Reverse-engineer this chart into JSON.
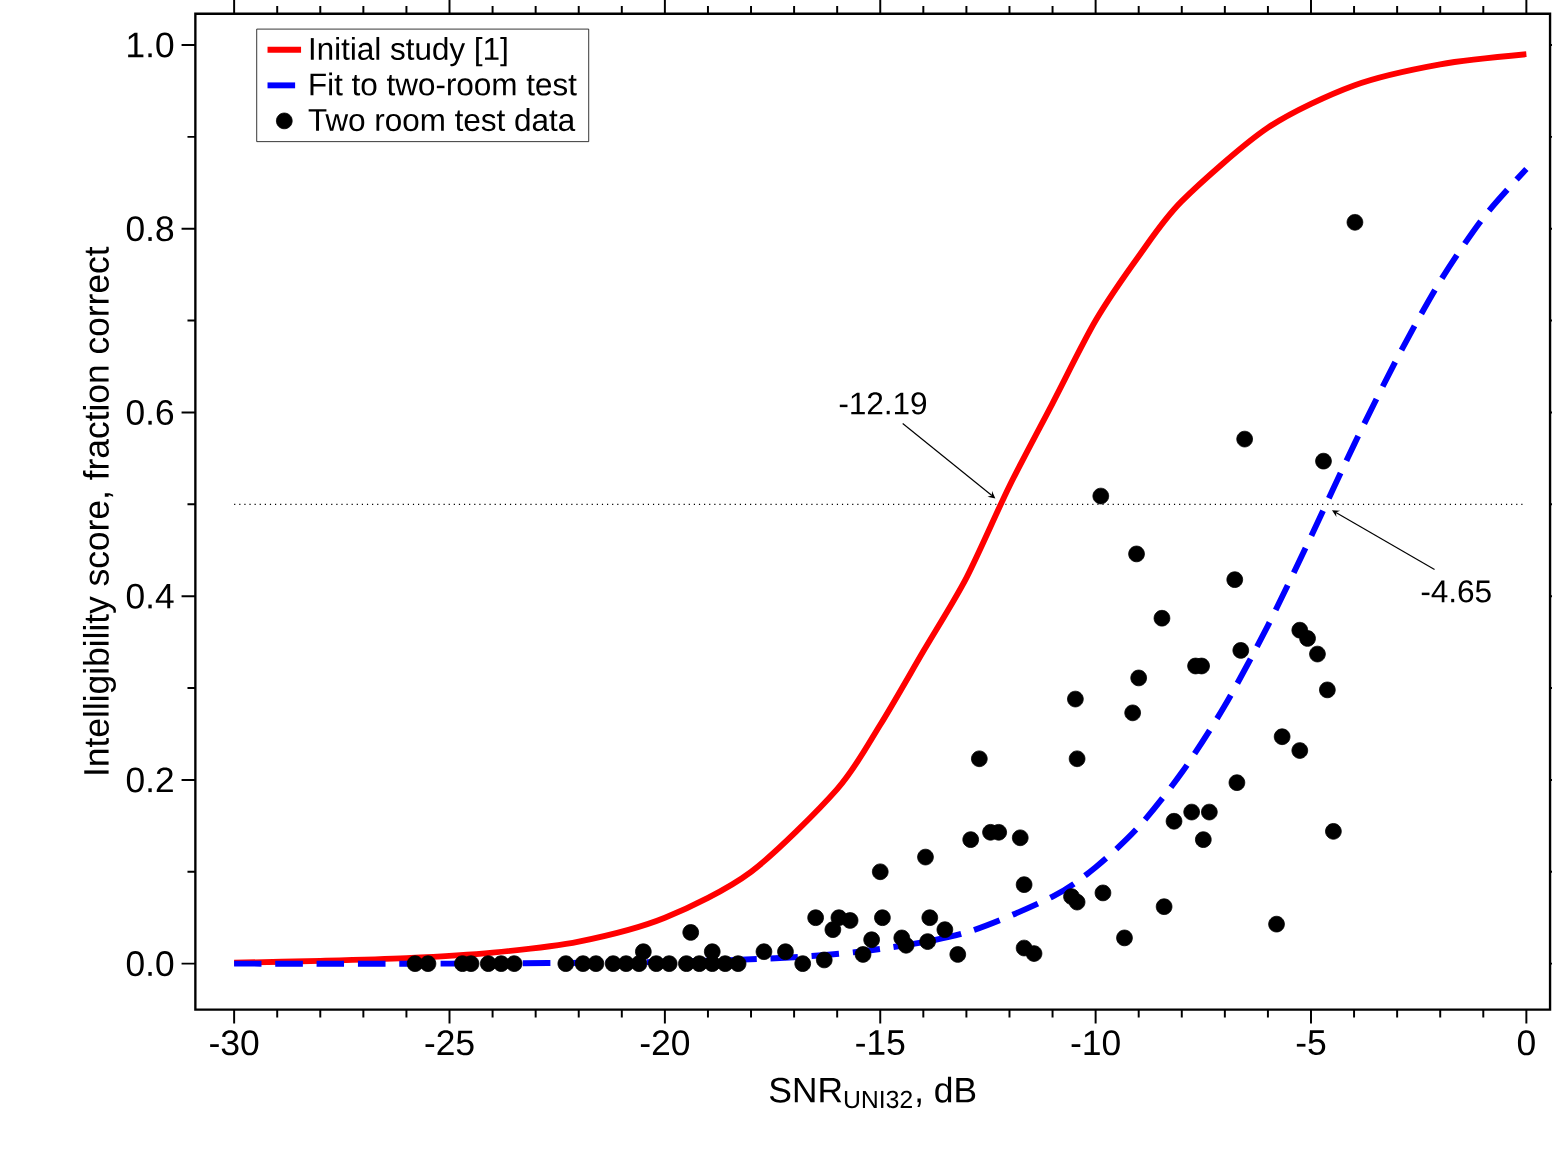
{
  "chart_data": {
    "type": "line",
    "xlabel": "SNR$_{UNI32}$, dB",
    "ylabel": "Intelligibility score, fraction correct",
    "xlim": [
      -30.9,
      0.55
    ],
    "ylim": [
      -0.05,
      1.034
    ],
    "xticks": [
      -30,
      -25,
      -20,
      -15,
      -10,
      -5,
      0
    ],
    "yticks": [
      {
        "value": 0,
        "label": "0.0"
      },
      {
        "value": 0.2,
        "label": "0.2"
      },
      {
        "value": 0.4,
        "label": "0.4"
      },
      {
        "value": 0.6,
        "label": "0.6"
      },
      {
        "value": 0.8,
        "label": "0.8"
      },
      {
        "value": 1,
        "label": "1.0"
      }
    ],
    "grid": false,
    "legend": "top left",
    "ref_lines": [
      {
        "axis": "y",
        "value": 0.5,
        "line_style": "dotted",
        "color": "#000000"
      }
    ],
    "annotations": [
      {
        "text": "-12.19",
        "x": -12.19,
        "y": 0.5
      },
      {
        "text": "-4.65",
        "x": -4.65,
        "y": 0.5
      }
    ],
    "series": [
      {
        "name": "Initial study [1]",
        "color": "#ff0000",
        "line_style": "solid",
        "marker": "none",
        "x": [
          -30,
          -28,
          -26,
          -24,
          -22,
          -20,
          -18,
          -16,
          -15,
          -14,
          -13,
          -12,
          -11,
          -10,
          -9,
          -8,
          -6,
          -4,
          -2,
          0
        ],
        "values": [
          0.001,
          0.003,
          0.006,
          0.012,
          0.024,
          0.05,
          0.1,
          0.19,
          0.26,
          0.34,
          0.42,
          0.52,
          0.61,
          0.7,
          0.77,
          0.83,
          0.91,
          0.956,
          0.979,
          0.99
        ]
      },
      {
        "name": "Fit to two-room test",
        "color": "#0000ff",
        "line_style": "dashed",
        "marker": "none",
        "x": [
          -30,
          -25,
          -20,
          -17,
          -15,
          -13,
          -11,
          -10,
          -9,
          -8,
          -7,
          -6,
          -5,
          -4,
          -3,
          -2,
          -1,
          0
        ],
        "values": [
          0.0,
          0.0,
          0.002,
          0.007,
          0.016,
          0.034,
          0.073,
          0.105,
          0.149,
          0.208,
          0.281,
          0.368,
          0.465,
          0.565,
          0.659,
          0.743,
          0.812,
          0.865
        ]
      },
      {
        "name": "Two room test data",
        "type": "scatter",
        "color": "#000000",
        "marker": "circle",
        "x": [
          -25.8,
          -25.5,
          -24.7,
          -24.5,
          -24.1,
          -23.8,
          -23.5,
          -22.3,
          -21.9,
          -21.6,
          -21.2,
          -20.9,
          -20.6,
          -20.2,
          -19.9,
          -19.5,
          -19.2,
          -18.9,
          -18.6,
          -20.5,
          -19.4,
          -18.9,
          -18.3,
          -17.7,
          -17.2,
          -16.8,
          -16.5,
          -15.96,
          -16.1,
          -16.3,
          -15.7,
          -15.4,
          -15.2,
          -15.0,
          -14.95,
          -14.5,
          -14.4,
          -13.95,
          -13.9,
          -13.85,
          -13.5,
          -13.2,
          -12.9,
          -12.7,
          -12.44,
          -12.25,
          -11.75,
          -11.66,
          -11.66,
          -11.43,
          -10.56,
          -10.43,
          -10.47,
          -10.43,
          -9.83,
          -9.33,
          -9.14,
          -9.0,
          -8.41,
          -8.18,
          -7.77,
          -7.68,
          -7.54,
          -7.5,
          -7.36,
          -6.72,
          -6.63,
          -5.8,
          -5.67,
          -5.26,
          -4.85,
          -4.62,
          -4.48,
          -3.98,
          -6.54,
          -4.71,
          -9.88,
          -9.05,
          -6.77,
          -8.46,
          -5.26,
          -5.08
        ],
        "values": [
          0,
          0,
          0,
          0,
          0,
          0,
          0,
          0,
          0,
          0,
          0,
          0,
          0,
          0,
          0,
          0,
          0,
          0,
          0,
          0.013,
          0.034,
          0.013,
          0,
          0.013,
          0.013,
          0,
          0.05,
          0.05,
          0.037,
          0.004,
          0.047,
          0.01,
          0.026,
          0.1,
          0.05,
          0.028,
          0.02,
          0.116,
          0.024,
          0.05,
          0.037,
          0.01,
          0.135,
          0.223,
          0.143,
          0.143,
          0.137,
          0.086,
          0.017,
          0.011,
          0.073,
          0.067,
          0.288,
          0.223,
          0.077,
          0.028,
          0.273,
          0.311,
          0.062,
          0.155,
          0.165,
          0.324,
          0.324,
          0.135,
          0.165,
          0.197,
          0.341,
          0.043,
          0.247,
          0.232,
          0.337,
          0.298,
          0.144,
          0.807,
          0.571,
          0.547,
          0.509,
          0.446,
          0.418,
          0.376,
          0.363,
          0.354
        ]
      }
    ]
  }
}
